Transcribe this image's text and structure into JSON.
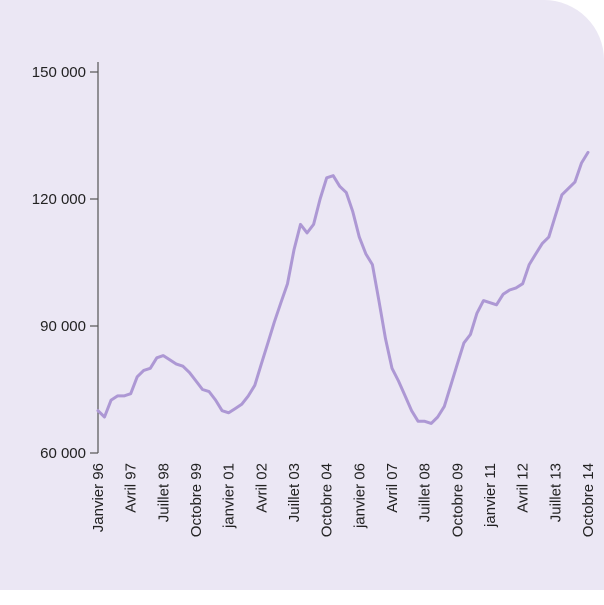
{
  "chart_data": {
    "type": "line",
    "color": "#ad98d4",
    "categories": [
      "Janvier 96",
      null,
      null,
      null,
      null,
      "Avril 97",
      null,
      null,
      null,
      null,
      "Juillet 98",
      null,
      null,
      null,
      null,
      "Octobre 99",
      null,
      null,
      null,
      null,
      "janvier 01",
      null,
      null,
      null,
      null,
      "Avril 02",
      null,
      null,
      null,
      null,
      "Juillet 03",
      null,
      null,
      null,
      null,
      "Octobre 04",
      null,
      null,
      null,
      null,
      "janvier 06",
      null,
      null,
      null,
      null,
      "Avril 07",
      null,
      null,
      null,
      null,
      "Juillet 08",
      null,
      null,
      null,
      null,
      "Octobre 09",
      null,
      null,
      null,
      null,
      "janvier 11",
      null,
      null,
      null,
      null,
      "Avril 12",
      null,
      null,
      null,
      null,
      "Juillet 13",
      null,
      null,
      null,
      null,
      "Octobre 14"
    ],
    "values": [
      70000,
      68500,
      72500,
      73500,
      73500,
      74000,
      78000,
      79500,
      80000,
      82500,
      83000,
      82000,
      81000,
      80500,
      79000,
      77000,
      75000,
      74500,
      72500,
      70000,
      69500,
      70500,
      71500,
      73500,
      76000,
      81000,
      86000,
      91000,
      95500,
      100000,
      108000,
      114000,
      112000,
      114000,
      120000,
      125000,
      125500,
      123000,
      121500,
      117000,
      111000,
      107000,
      104500,
      96000,
      87000,
      80000,
      77000,
      73500,
      70000,
      67500,
      67500,
      67000,
      68500,
      71000,
      76000,
      81000,
      86000,
      88000,
      93000,
      96000,
      95500,
      95000,
      97500,
      98500,
      99000,
      100000,
      104500,
      107000,
      109500,
      111000,
      116000,
      121000,
      122500,
      124000,
      128500,
      131000
    ],
    "ylim": [
      60000,
      150000
    ],
    "yticks": [
      {
        "value": 60000,
        "label": "60 000"
      },
      {
        "value": 90000,
        "label": "90 000"
      },
      {
        "value": 120000,
        "label": "120 000"
      },
      {
        "value": 150000,
        "label": "150 000"
      }
    ]
  }
}
